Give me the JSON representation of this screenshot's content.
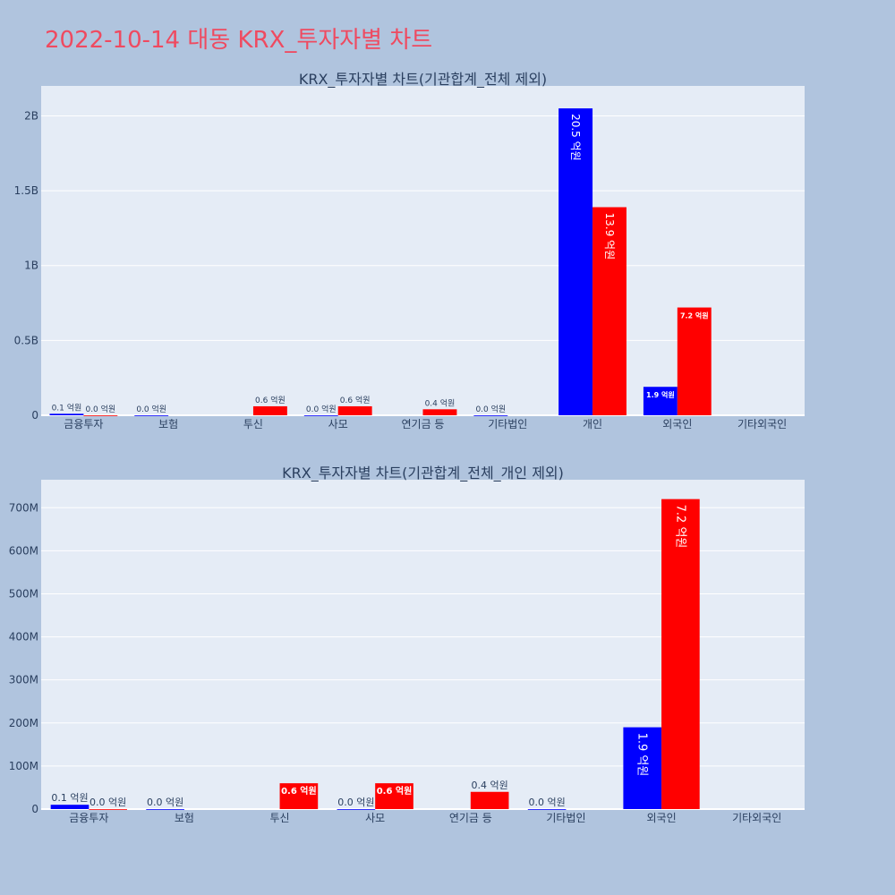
{
  "header": {
    "title": "2022-10-14 대동 KRX_투자자별 차트"
  },
  "colors": {
    "buy": "#0000ff",
    "sell": "#ff0000",
    "plot_bg": "#e5ecf6",
    "paper_bg": "#b0c4de",
    "title": "#ef4a60"
  },
  "chart_data": [
    {
      "type": "bar",
      "title": "KRX_투자자별 차트(기관합계_전체 제외)",
      "categories": [
        "금융투자",
        "보험",
        "투신",
        "사모",
        "연기금 등",
        "기타법인",
        "개인",
        "외국인",
        "기타외국인"
      ],
      "ylim": [
        0,
        2200000000
      ],
      "yticks": [
        0,
        500000000,
        1000000000,
        1500000000,
        2000000000
      ],
      "ytick_labels": [
        "0",
        "0.5B",
        "1B",
        "1.5B",
        "2B"
      ],
      "grid": true,
      "series": [
        {
          "color": "#0000ff",
          "values": [
            10000000,
            0,
            null,
            0,
            null,
            0,
            2050000000,
            190000000,
            null
          ],
          "labels": [
            "0.1 억원",
            "0.0 억원",
            "",
            "0.0 억원",
            "",
            "0.0 억원",
            "20.5 억원",
            "1.9 억원",
            ""
          ]
        },
        {
          "color": "#ff0000",
          "values": [
            0,
            null,
            60000000,
            60000000,
            40000000,
            null,
            1390000000,
            720000000,
            null
          ],
          "labels": [
            "0.0 억원",
            "",
            "0.6 억원",
            "0.6 억원",
            "0.4 억원",
            "",
            "13.9 억원",
            "7.2 억원",
            ""
          ]
        }
      ]
    },
    {
      "type": "bar",
      "title": "KRX_투자자별 차트(기관합계_전체_개인 제외)",
      "categories": [
        "금융투자",
        "보험",
        "투신",
        "사모",
        "연기금 등",
        "기타법인",
        "외국인",
        "기타외국인"
      ],
      "ylim": [
        0,
        765000000
      ],
      "yticks": [
        0,
        100000000,
        200000000,
        300000000,
        400000000,
        500000000,
        600000000,
        700000000
      ],
      "ytick_labels": [
        "0",
        "100M",
        "200M",
        "300M",
        "400M",
        "500M",
        "600M",
        "700M"
      ],
      "grid": true,
      "series": [
        {
          "color": "#0000ff",
          "values": [
            10000000,
            0,
            null,
            0,
            null,
            0,
            190000000,
            null
          ],
          "labels": [
            "0.1 억원",
            "0.0 억원",
            "",
            "0.0 억원",
            "",
            "0.0 억원",
            "1.9 억원",
            ""
          ]
        },
        {
          "color": "#ff0000",
          "values": [
            0,
            null,
            60000000,
            60000000,
            40000000,
            null,
            720000000,
            null
          ],
          "labels": [
            "0.0 억원",
            "",
            "0.6 억원",
            "0.6 억원",
            "0.4 억원",
            "",
            "7.2 억원",
            ""
          ]
        }
      ]
    }
  ]
}
